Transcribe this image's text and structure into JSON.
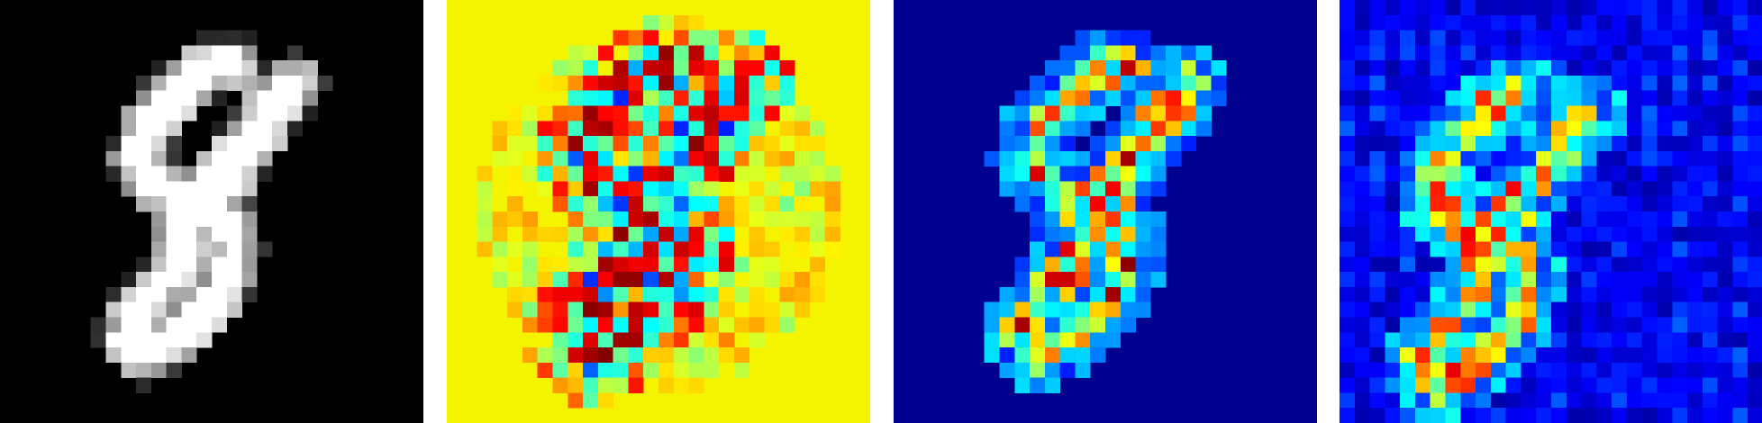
{
  "figure": {
    "panels": [
      {
        "id": "input-digit",
        "colormap": "gray"
      },
      {
        "id": "map-1",
        "colormap": "jet"
      },
      {
        "id": "map-2",
        "colormap": "jet"
      },
      {
        "id": "map-3",
        "colormap": "jet"
      }
    ]
  }
}
